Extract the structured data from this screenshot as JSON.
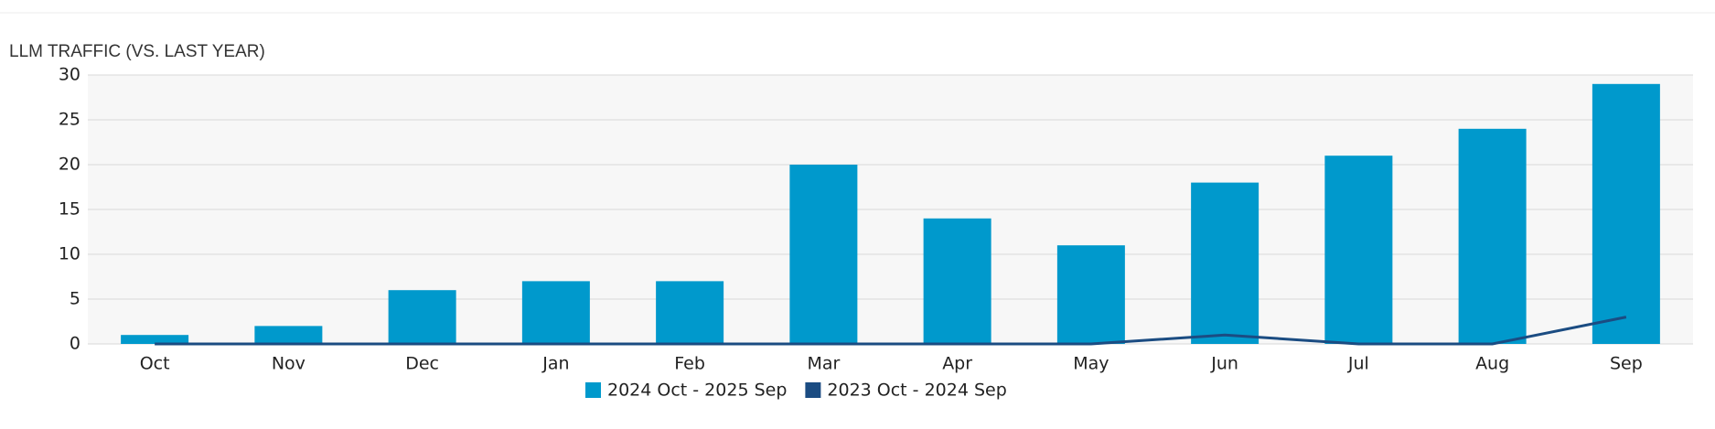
{
  "chart_data": {
    "type": "bar",
    "title": "LLM TRAFFIC (VS. LAST YEAR)",
    "categories": [
      "Oct",
      "Nov",
      "Dec",
      "Jan",
      "Feb",
      "Mar",
      "Apr",
      "May",
      "Jun",
      "Jul",
      "Aug",
      "Sep"
    ],
    "series": [
      {
        "name": "2024 Oct - 2025 Sep",
        "type": "bar",
        "color": "#0099cc",
        "values": [
          1,
          2,
          6,
          7,
          7,
          20,
          14,
          11,
          18,
          21,
          24,
          29
        ]
      },
      {
        "name": "2023 Oct - 2024 Sep",
        "type": "line",
        "color": "#1b4c82",
        "values": [
          0,
          0,
          0,
          0,
          0,
          0,
          0,
          0,
          1,
          0,
          0,
          3
        ]
      }
    ],
    "ylim": [
      0,
      30
    ],
    "yticks": [
      0,
      5,
      10,
      15,
      20,
      25,
      30
    ],
    "grid": true,
    "legend": "bottom"
  }
}
